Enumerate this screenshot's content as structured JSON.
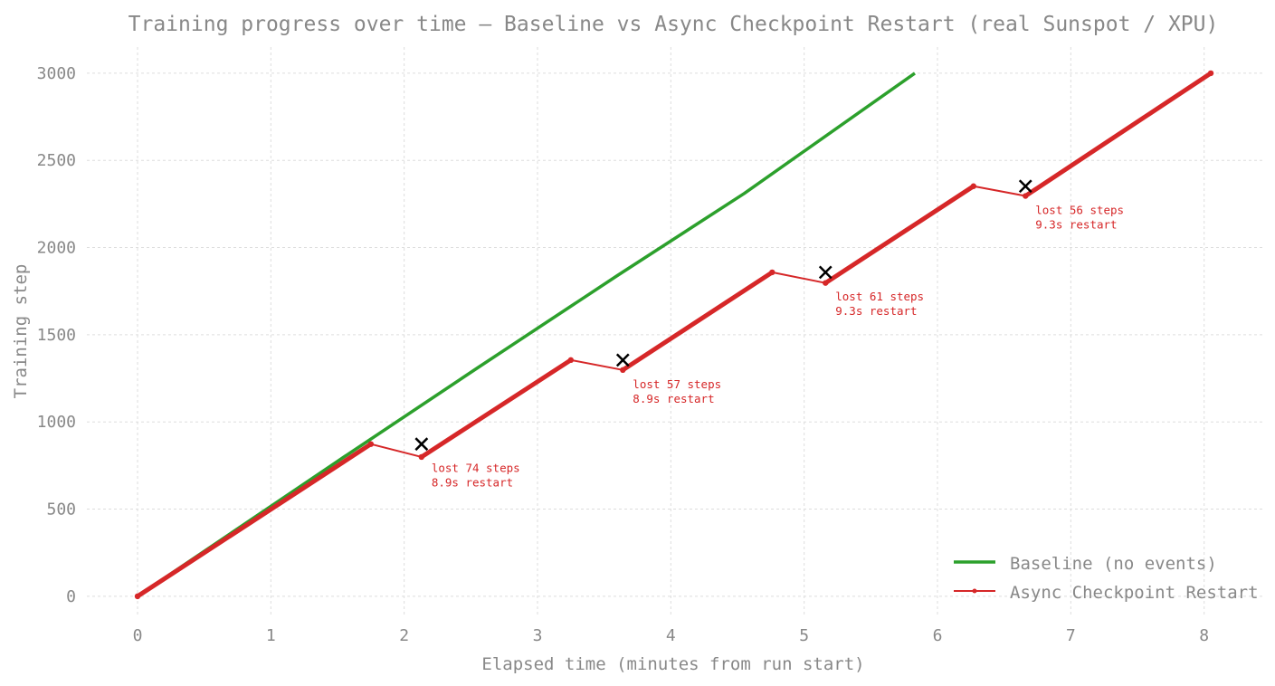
{
  "chart_data": {
    "type": "line",
    "title": "Training progress over time — Baseline vs Async Checkpoint Restart (real Sunspot / XPU)",
    "xlabel": "Elapsed time (minutes from run start)",
    "ylabel": "Training step",
    "xlim": [
      -0.38,
      8.45
    ],
    "ylim": [
      -120,
      3150
    ],
    "xticks": [
      0,
      1,
      2,
      3,
      4,
      5,
      6,
      7,
      8
    ],
    "yticks": [
      0,
      500,
      1000,
      1500,
      2000,
      2500,
      3000
    ],
    "grid": true,
    "legend_position": "bottom-right",
    "series": [
      {
        "name": "Baseline (no events)",
        "color": "#2ca02c",
        "marker": "none",
        "x": [
          0,
          1.55,
          2.55,
          3.6,
          4.55,
          5.83
        ],
        "y": [
          0,
          800,
          1310,
          1840,
          2310,
          3000
        ]
      },
      {
        "name": "Async Checkpoint Restart",
        "color": "#d62728",
        "marker": "dot",
        "segments": [
          {
            "x": [
              0,
              1.75
            ],
            "y": [
              0,
              873
            ]
          },
          {
            "x": [
              2.13,
              3.25
            ],
            "y": [
              799,
              1355
            ]
          },
          {
            "x": [
              3.64,
              4.76
            ],
            "y": [
              1298,
              1858
            ]
          },
          {
            "x": [
              5.16,
              6.27
            ],
            "y": [
              1797,
              2352
            ]
          },
          {
            "x": [
              6.66,
              8.05
            ],
            "y": [
              2296,
              3000
            ]
          }
        ],
        "restart_gaps": [
          {
            "x": [
              1.75,
              2.13
            ],
            "y": [
              873,
              799
            ]
          },
          {
            "x": [
              3.25,
              3.64
            ],
            "y": [
              1355,
              1298
            ]
          },
          {
            "x": [
              4.76,
              5.16
            ],
            "y": [
              1858,
              1797
            ]
          },
          {
            "x": [
              6.27,
              6.66
            ],
            "y": [
              2352,
              2296
            ]
          }
        ]
      }
    ],
    "events": [
      {
        "x": 2.13,
        "y": 873,
        "line1": "lost 74 steps",
        "line2": "8.9s restart"
      },
      {
        "x": 3.64,
        "y": 1355,
        "line1": "lost 57 steps",
        "line2": "8.9s restart"
      },
      {
        "x": 5.16,
        "y": 1858,
        "line1": "lost 61 steps",
        "line2": "9.3s restart"
      },
      {
        "x": 6.66,
        "y": 2352,
        "line1": "lost 56 steps",
        "line2": "9.3s restart"
      }
    ],
    "event_marker_color": "#000000"
  }
}
